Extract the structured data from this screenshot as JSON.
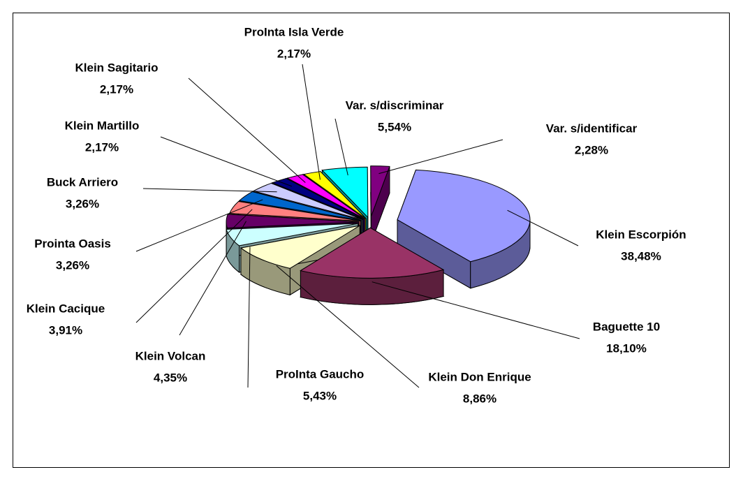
{
  "chart_data": {
    "type": "pie",
    "categories": [
      "Klein Escorpión",
      "Baguette 10",
      "Klein Don Enrique",
      "ProInta Gaucho",
      "Klein Volcan",
      "Klein Cacique",
      "Prointa Oasis",
      "Buck Arriero",
      "Klein Martillo",
      "Klein Sagitario",
      "ProInta Isla Verde",
      "Var. s/discriminar",
      "Var. s/identificar"
    ],
    "values": [
      38.48,
      18.1,
      8.86,
      5.43,
      4.35,
      3.91,
      3.26,
      3.26,
      2.17,
      2.17,
      2.17,
      5.54,
      2.28
    ],
    "value_labels": [
      "38,48%",
      "18,10%",
      "8,86%",
      "5,43%",
      "4,35%",
      "3,91%",
      "3,26%",
      "3,26%",
      "2,17%",
      "2,17%",
      "2,17%",
      "5,54%",
      "2,28%"
    ],
    "colors": [
      "#9999ff",
      "#993366",
      "#ffffcc",
      "#ccffff",
      "#660066",
      "#ff8080",
      "#0066cc",
      "#ccccff",
      "#000080",
      "#ff00ff",
      "#ffff00",
      "#00ffff",
      "#800080"
    ]
  }
}
